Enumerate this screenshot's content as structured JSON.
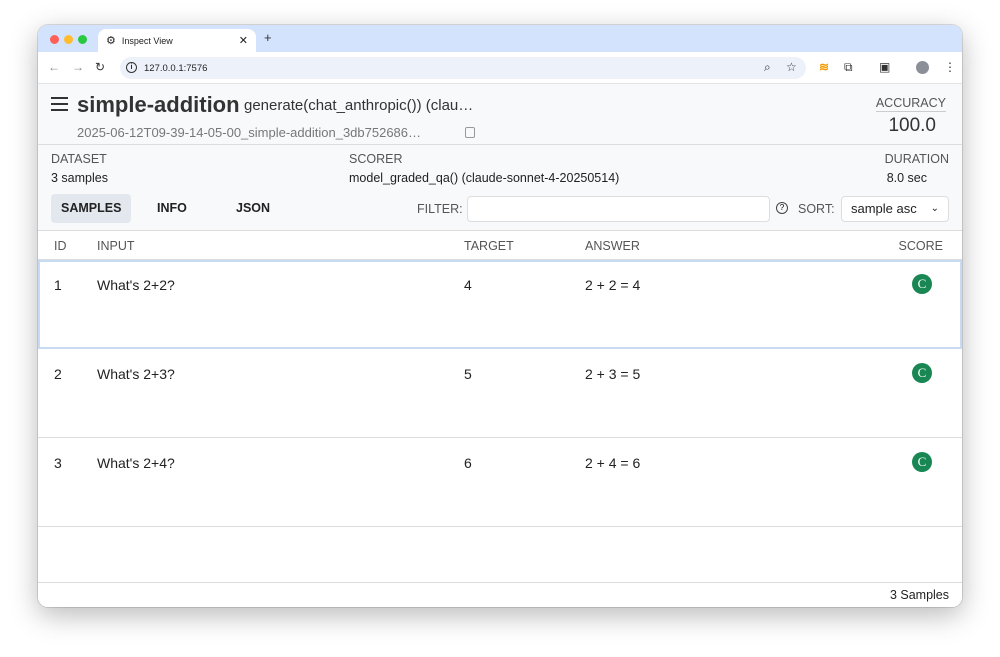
{
  "browser": {
    "tab_title": "Inspect View",
    "url": "127.0.0.1:7576"
  },
  "header": {
    "title": "simple-addition",
    "subtitle": "generate(chat_anthropic()) (clau…",
    "log_id": "2025-06-12T09-39-14-05-00_simple-addition_3db752686…",
    "accuracy_label": "ACCURACY",
    "accuracy_value": "100.0"
  },
  "meta": {
    "dataset_label": "DATASET",
    "dataset_value": "3 samples",
    "scorer_label": "SCORER",
    "scorer_value": "model_graded_qa() (claude-sonnet-4-20250514)",
    "duration_label": "DURATION",
    "duration_value": "8.0 sec"
  },
  "tabs": [
    {
      "label": "SAMPLES",
      "active": true
    },
    {
      "label": "INFO"
    },
    {
      "label": "JSON"
    }
  ],
  "filter": {
    "label": "FILTER:",
    "value": ""
  },
  "sort": {
    "label": "SORT:",
    "value": "sample asc"
  },
  "table": {
    "columns": [
      "ID",
      "INPUT",
      "TARGET",
      "ANSWER",
      "SCORE"
    ],
    "rows": [
      {
        "id": "1",
        "input": "What's 2+2?",
        "target": "4",
        "answer": "2 + 2 = 4",
        "score": "C"
      },
      {
        "id": "2",
        "input": "What's 2+3?",
        "target": "5",
        "answer": "2 + 3 = 5",
        "score": "C"
      },
      {
        "id": "3",
        "input": "What's 2+4?",
        "target": "6",
        "answer": "2 + 4 = 6",
        "score": "C"
      }
    ]
  },
  "footer": {
    "count": "3 Samples"
  },
  "colors": {
    "score_correct": "#198754",
    "tabbar": "#d3e3fd",
    "selected_row_border": "#c7dbf5"
  }
}
